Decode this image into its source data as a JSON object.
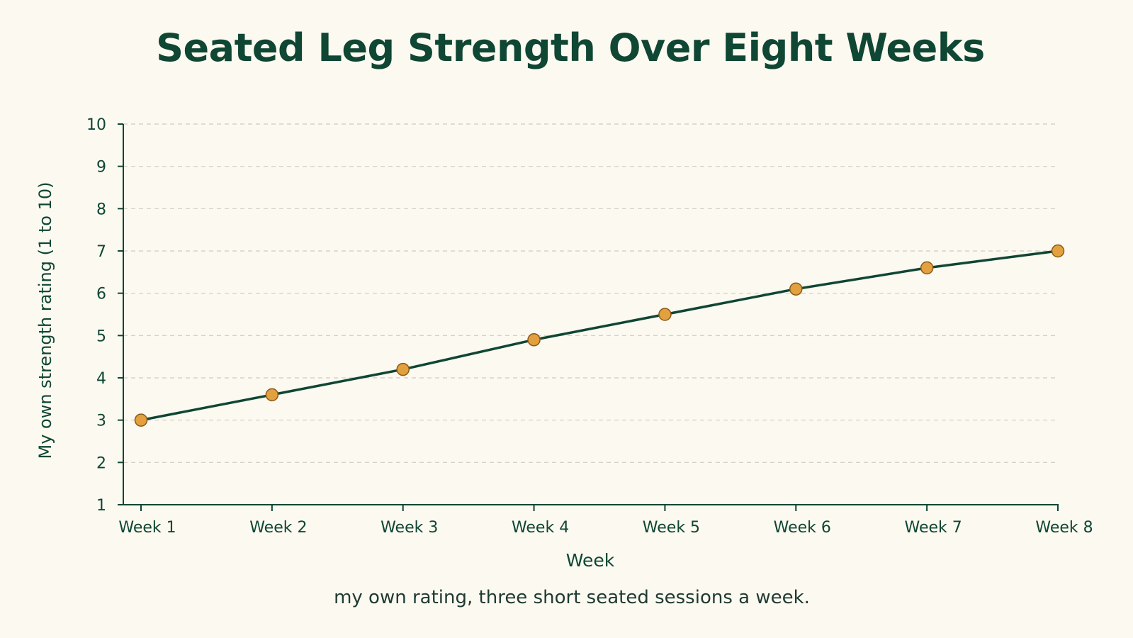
{
  "chart_data": {
    "type": "line",
    "title": "Seated Leg Strength Over Eight Weeks",
    "xlabel": "Week",
    "ylabel": "My own strength rating (1 to 10)",
    "caption": "my own rating, three short seated sessions a week.",
    "categories": [
      "Week 1",
      "Week 2",
      "Week 3",
      "Week 4",
      "Week 5",
      "Week 6",
      "Week 7",
      "Week 8"
    ],
    "series": [
      {
        "values": [
          3.0,
          3.6,
          4.2,
          4.9,
          5.5,
          6.1,
          6.6,
          7.0
        ]
      }
    ],
    "ylim": [
      1,
      10
    ],
    "yticks": [
      1,
      2,
      3,
      4,
      5,
      6,
      7,
      8,
      9,
      10
    ],
    "grid": "horizontal dashed",
    "colors": {
      "background": "#fcf9f0",
      "text": "#0f4634",
      "line": "#0f4634",
      "marker_fill": "#e3a03f",
      "marker_stroke": "#8a5a19",
      "grid": "#cfcbbf"
    }
  }
}
